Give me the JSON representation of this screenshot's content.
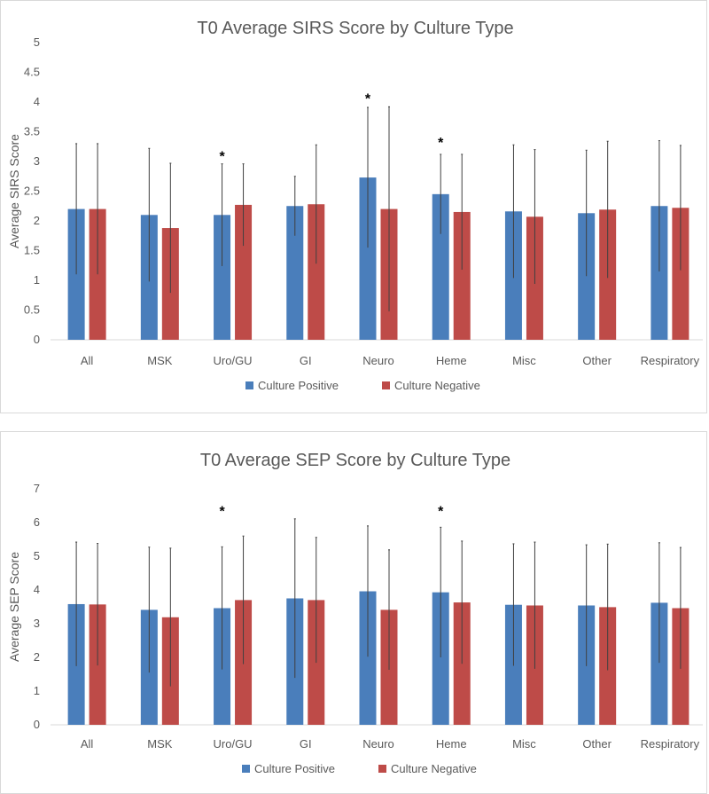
{
  "chart_data": [
    {
      "type": "bar",
      "title": "T0 Average SIRS Score by Culture Type",
      "xlabel": "",
      "ylabel": "Average SIRS Score",
      "ylim": [
        0,
        5
      ],
      "ytick_step": 0.5,
      "yticks": [
        "0",
        "0.5",
        "1",
        "1.5",
        "2",
        "2.5",
        "3",
        "3.5",
        "4",
        "4.5",
        "5"
      ],
      "grid": false,
      "legend_position": "bottom",
      "categories": [
        "All",
        "MSK",
        "Uro/GU",
        "GI",
        "Neuro",
        "Heme",
        "Misc",
        "Other",
        "Respiratory"
      ],
      "series": [
        {
          "name": "Culture Positive",
          "color": "#4a7ebb",
          "values": [
            2.2,
            2.1,
            2.1,
            2.25,
            2.73,
            2.45,
            2.16,
            2.13,
            2.25
          ],
          "error": [
            1.1,
            1.12,
            0.86,
            0.5,
            1.18,
            0.67,
            1.12,
            1.06,
            1.1
          ]
        },
        {
          "name": "Culture Negative",
          "color": "#be4b48",
          "values": [
            2.2,
            1.88,
            2.27,
            2.28,
            2.2,
            2.15,
            2.07,
            2.19,
            2.22
          ],
          "error": [
            1.1,
            1.09,
            0.69,
            1.0,
            1.72,
            0.97,
            1.13,
            1.15,
            1.05
          ]
        }
      ],
      "annotations": [
        {
          "category": "Uro/GU",
          "text": "*",
          "y": 3.1
        },
        {
          "category": "Neuro",
          "text": "*",
          "y": 4.07
        },
        {
          "category": "Heme",
          "text": "*",
          "y": 3.33
        }
      ]
    },
    {
      "type": "bar",
      "title": "T0 Average SEP Score by Culture Type",
      "xlabel": "",
      "ylabel": "Average SEP Score",
      "ylim": [
        0,
        7
      ],
      "ytick_step": 1,
      "yticks": [
        "0",
        "1",
        "2",
        "3",
        "4",
        "5",
        "6",
        "7"
      ],
      "grid": false,
      "legend_position": "bottom",
      "categories": [
        "All",
        "MSK",
        "Uro/GU",
        "GI",
        "Neuro",
        "Heme",
        "Misc",
        "Other",
        "Respiratory"
      ],
      "series": [
        {
          "name": "Culture Positive",
          "color": "#4a7ebb",
          "values": [
            3.58,
            3.41,
            3.46,
            3.75,
            3.96,
            3.93,
            3.56,
            3.54,
            3.62
          ],
          "error": [
            1.84,
            1.86,
            1.82,
            2.36,
            1.94,
            1.93,
            1.81,
            1.8,
            1.78
          ]
        },
        {
          "name": "Culture Negative",
          "color": "#be4b48",
          "values": [
            3.57,
            3.19,
            3.7,
            3.7,
            3.41,
            3.63,
            3.54,
            3.49,
            3.46
          ],
          "error": [
            1.81,
            2.05,
            1.9,
            1.86,
            1.78,
            1.82,
            1.88,
            1.87,
            1.8
          ]
        }
      ],
      "annotations": [
        {
          "category": "Uro/GU",
          "text": "*",
          "y": 6.35
        },
        {
          "category": "Heme",
          "text": "*",
          "y": 6.35
        }
      ]
    }
  ]
}
